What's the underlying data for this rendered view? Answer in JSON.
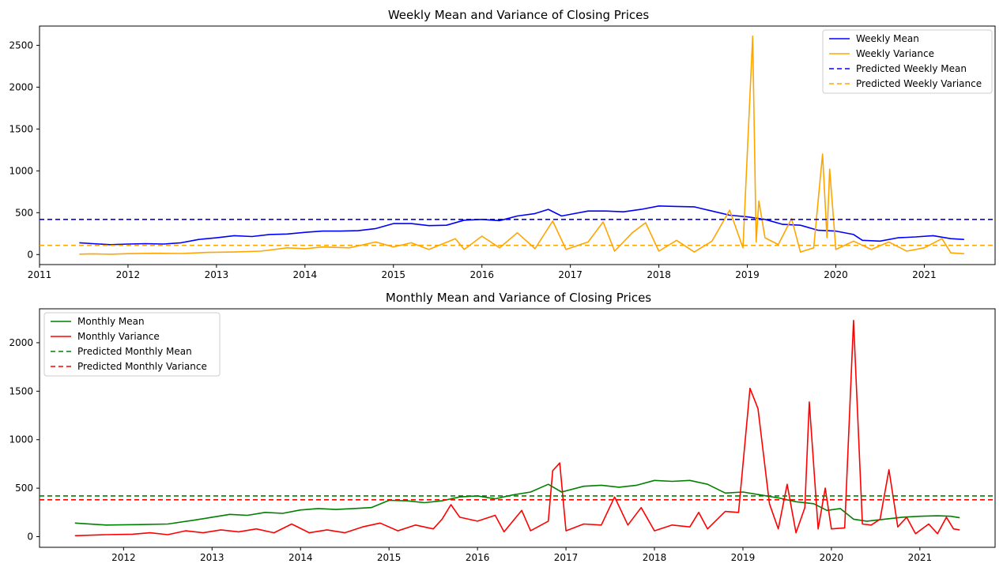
{
  "chart_data": [
    {
      "type": "line",
      "title": "Weekly Mean and Variance of Closing Prices",
      "xlabel": "",
      "ylabel": "",
      "x_tick_labels": [
        "2011",
        "2012",
        "2013",
        "2014",
        "2015",
        "2016",
        "2017",
        "2018",
        "2019",
        "2020",
        "2021"
      ],
      "y_tick_labels": [
        "0",
        "500",
        "1000",
        "1500",
        "2000",
        "2500"
      ],
      "xlim": [
        2011.0,
        2021.8
      ],
      "ylim": [
        -120,
        2730
      ],
      "grid": false,
      "legend_position": "top-right",
      "series": [
        {
          "name": "Weekly Mean",
          "color": "#0000ff",
          "style": "solid",
          "points": [
            [
              2011.45,
              140
            ],
            [
              2011.6,
              130
            ],
            [
              2011.8,
              118
            ],
            [
              2012.0,
              125
            ],
            [
              2012.2,
              130
            ],
            [
              2012.4,
              125
            ],
            [
              2012.6,
              140
            ],
            [
              2012.8,
              180
            ],
            [
              2013.0,
              200
            ],
            [
              2013.2,
              225
            ],
            [
              2013.4,
              215
            ],
            [
              2013.6,
              240
            ],
            [
              2013.8,
              245
            ],
            [
              2014.0,
              265
            ],
            [
              2014.2,
              280
            ],
            [
              2014.4,
              280
            ],
            [
              2014.6,
              285
            ],
            [
              2014.8,
              310
            ],
            [
              2015.0,
              370
            ],
            [
              2015.2,
              370
            ],
            [
              2015.4,
              345
            ],
            [
              2015.6,
              350
            ],
            [
              2015.8,
              410
            ],
            [
              2016.0,
              420
            ],
            [
              2016.2,
              405
            ],
            [
              2016.4,
              460
            ],
            [
              2016.6,
              490
            ],
            [
              2016.75,
              540
            ],
            [
              2016.9,
              460
            ],
            [
              2017.0,
              480
            ],
            [
              2017.2,
              520
            ],
            [
              2017.4,
              520
            ],
            [
              2017.6,
              510
            ],
            [
              2017.8,
              540
            ],
            [
              2018.0,
              580
            ],
            [
              2018.2,
              575
            ],
            [
              2018.4,
              570
            ],
            [
              2018.6,
              520
            ],
            [
              2018.8,
              470
            ],
            [
              2019.0,
              450
            ],
            [
              2019.2,
              420
            ],
            [
              2019.4,
              360
            ],
            [
              2019.6,
              350
            ],
            [
              2019.8,
              290
            ],
            [
              2020.0,
              280
            ],
            [
              2020.2,
              240
            ],
            [
              2020.3,
              170
            ],
            [
              2020.5,
              160
            ],
            [
              2020.7,
              200
            ],
            [
              2020.9,
              210
            ],
            [
              2021.1,
              225
            ],
            [
              2021.3,
              190
            ],
            [
              2021.45,
              180
            ]
          ]
        },
        {
          "name": "Weekly Variance",
          "color": "#ffa500",
          "style": "solid",
          "points": [
            [
              2011.45,
              5
            ],
            [
              2011.6,
              8
            ],
            [
              2011.8,
              4
            ],
            [
              2012.0,
              10
            ],
            [
              2012.3,
              15
            ],
            [
              2012.6,
              12
            ],
            [
              2012.9,
              25
            ],
            [
              2013.2,
              30
            ],
            [
              2013.5,
              40
            ],
            [
              2013.8,
              80
            ],
            [
              2014.0,
              70
            ],
            [
              2014.2,
              90
            ],
            [
              2014.5,
              80
            ],
            [
              2014.8,
              150
            ],
            [
              2015.0,
              90
            ],
            [
              2015.2,
              140
            ],
            [
              2015.4,
              60
            ],
            [
              2015.7,
              190
            ],
            [
              2015.8,
              60
            ],
            [
              2016.0,
              220
            ],
            [
              2016.2,
              80
            ],
            [
              2016.4,
              260
            ],
            [
              2016.6,
              70
            ],
            [
              2016.8,
              400
            ],
            [
              2016.95,
              60
            ],
            [
              2017.2,
              150
            ],
            [
              2017.37,
              390
            ],
            [
              2017.5,
              40
            ],
            [
              2017.7,
              260
            ],
            [
              2017.85,
              380
            ],
            [
              2018.0,
              40
            ],
            [
              2018.2,
              170
            ],
            [
              2018.4,
              30
            ],
            [
              2018.6,
              160
            ],
            [
              2018.8,
              530
            ],
            [
              2018.95,
              80
            ],
            [
              2019.06,
              2610
            ],
            [
              2019.1,
              150
            ],
            [
              2019.13,
              640
            ],
            [
              2019.2,
              200
            ],
            [
              2019.35,
              120
            ],
            [
              2019.5,
              430
            ],
            [
              2019.6,
              30
            ],
            [
              2019.75,
              80
            ],
            [
              2019.85,
              1200
            ],
            [
              2019.9,
              200
            ],
            [
              2019.93,
              1020
            ],
            [
              2020.0,
              60
            ],
            [
              2020.2,
              160
            ],
            [
              2020.4,
              60
            ],
            [
              2020.6,
              150
            ],
            [
              2020.8,
              40
            ],
            [
              2021.0,
              80
            ],
            [
              2021.2,
              190
            ],
            [
              2021.3,
              20
            ],
            [
              2021.45,
              10
            ]
          ]
        },
        {
          "name": "Predicted Weekly Mean",
          "color": "#0000ff",
          "style": "dashed",
          "value": 420
        },
        {
          "name": "Predicted Weekly Variance",
          "color": "#ffa500",
          "style": "dashed",
          "value": 110
        }
      ]
    },
    {
      "type": "line",
      "title": "Monthly Mean and Variance of Closing Prices",
      "xlabel": "",
      "ylabel": "",
      "x_tick_labels": [
        "2012",
        "2013",
        "2014",
        "2015",
        "2016",
        "2017",
        "2018",
        "2019",
        "2020",
        "2021"
      ],
      "y_tick_labels": [
        "0",
        "500",
        "1000",
        "1500",
        "2000"
      ],
      "xlim": [
        2011.05,
        2021.85
      ],
      "ylim": [
        -110,
        2350
      ],
      "grid": false,
      "legend_position": "top-left",
      "series": [
        {
          "name": "Monthly Mean",
          "color": "#008000",
          "style": "solid",
          "points": [
            [
              2011.45,
              140
            ],
            [
              2011.8,
              120
            ],
            [
              2012.2,
              125
            ],
            [
              2012.5,
              130
            ],
            [
              2012.8,
              170
            ],
            [
              2013.0,
              200
            ],
            [
              2013.2,
              230
            ],
            [
              2013.4,
              220
            ],
            [
              2013.6,
              250
            ],
            [
              2013.8,
              240
            ],
            [
              2014.0,
              275
            ],
            [
              2014.2,
              290
            ],
            [
              2014.4,
              280
            ],
            [
              2014.6,
              290
            ],
            [
              2014.8,
              300
            ],
            [
              2015.0,
              375
            ],
            [
              2015.2,
              370
            ],
            [
              2015.4,
              350
            ],
            [
              2015.6,
              370
            ],
            [
              2015.8,
              410
            ],
            [
              2016.0,
              420
            ],
            [
              2016.2,
              390
            ],
            [
              2016.4,
              430
            ],
            [
              2016.6,
              460
            ],
            [
              2016.8,
              540
            ],
            [
              2016.95,
              460
            ],
            [
              2017.2,
              520
            ],
            [
              2017.4,
              530
            ],
            [
              2017.6,
              510
            ],
            [
              2017.8,
              530
            ],
            [
              2018.0,
              580
            ],
            [
              2018.2,
              570
            ],
            [
              2018.4,
              580
            ],
            [
              2018.6,
              540
            ],
            [
              2018.8,
              450
            ],
            [
              2019.0,
              460
            ],
            [
              2019.2,
              430
            ],
            [
              2019.4,
              400
            ],
            [
              2019.6,
              360
            ],
            [
              2019.8,
              340
            ],
            [
              2019.95,
              270
            ],
            [
              2020.1,
              290
            ],
            [
              2020.25,
              180
            ],
            [
              2020.4,
              160
            ],
            [
              2020.6,
              180
            ],
            [
              2020.8,
              200
            ],
            [
              2021.0,
              210
            ],
            [
              2021.2,
              215
            ],
            [
              2021.35,
              210
            ],
            [
              2021.45,
              195
            ]
          ]
        },
        {
          "name": "Monthly Variance",
          "color": "#ff0000",
          "style": "solid",
          "points": [
            [
              2011.45,
              10
            ],
            [
              2011.8,
              20
            ],
            [
              2012.1,
              25
            ],
            [
              2012.3,
              40
            ],
            [
              2012.5,
              20
            ],
            [
              2012.7,
              60
            ],
            [
              2012.9,
              40
            ],
            [
              2013.1,
              70
            ],
            [
              2013.3,
              50
            ],
            [
              2013.5,
              80
            ],
            [
              2013.7,
              40
            ],
            [
              2013.9,
              130
            ],
            [
              2014.1,
              40
            ],
            [
              2014.3,
              70
            ],
            [
              2014.5,
              40
            ],
            [
              2014.7,
              100
            ],
            [
              2014.9,
              140
            ],
            [
              2015.1,
              60
            ],
            [
              2015.3,
              120
            ],
            [
              2015.5,
              80
            ],
            [
              2015.6,
              180
            ],
            [
              2015.7,
              330
            ],
            [
              2015.8,
              200
            ],
            [
              2016.0,
              160
            ],
            [
              2016.2,
              220
            ],
            [
              2016.3,
              50
            ],
            [
              2016.5,
              270
            ],
            [
              2016.6,
              60
            ],
            [
              2016.8,
              160
            ],
            [
              2016.85,
              680
            ],
            [
              2016.93,
              760
            ],
            [
              2017.0,
              60
            ],
            [
              2017.2,
              130
            ],
            [
              2017.4,
              120
            ],
            [
              2017.55,
              410
            ],
            [
              2017.7,
              120
            ],
            [
              2017.85,
              300
            ],
            [
              2018.0,
              60
            ],
            [
              2018.2,
              120
            ],
            [
              2018.4,
              100
            ],
            [
              2018.5,
              250
            ],
            [
              2018.6,
              80
            ],
            [
              2018.8,
              260
            ],
            [
              2018.95,
              250
            ],
            [
              2019.08,
              1530
            ],
            [
              2019.17,
              1320
            ],
            [
              2019.3,
              340
            ],
            [
              2019.4,
              80
            ],
            [
              2019.5,
              540
            ],
            [
              2019.6,
              40
            ],
            [
              2019.7,
              300
            ],
            [
              2019.75,
              1390
            ],
            [
              2019.85,
              80
            ],
            [
              2019.93,
              500
            ],
            [
              2020.0,
              80
            ],
            [
              2020.15,
              90
            ],
            [
              2020.25,
              2230
            ],
            [
              2020.35,
              130
            ],
            [
              2020.45,
              120
            ],
            [
              2020.55,
              180
            ],
            [
              2020.65,
              690
            ],
            [
              2020.75,
              100
            ],
            [
              2020.85,
              200
            ],
            [
              2020.95,
              30
            ],
            [
              2021.1,
              130
            ],
            [
              2021.2,
              30
            ],
            [
              2021.3,
              200
            ],
            [
              2021.38,
              80
            ],
            [
              2021.45,
              70
            ]
          ]
        },
        {
          "name": "Predicted Monthly Mean",
          "color": "#008000",
          "style": "dashed",
          "value": 420
        },
        {
          "name": "Predicted Monthly Variance",
          "color": "#ff0000",
          "style": "dashed",
          "value": 380
        }
      ]
    }
  ]
}
